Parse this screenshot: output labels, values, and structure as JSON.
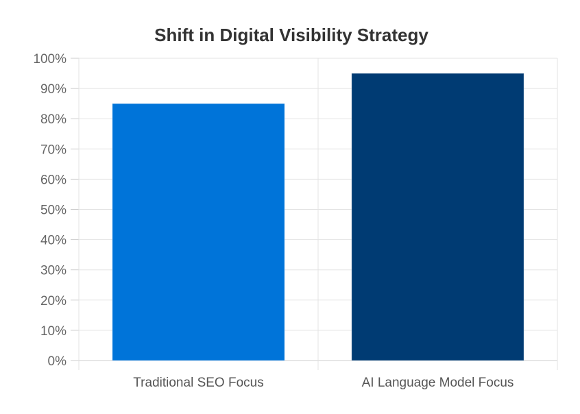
{
  "chart_data": {
    "type": "bar",
    "title": "Shift in Digital Visibility Strategy",
    "xlabel": "",
    "ylabel": "",
    "categories": [
      "Traditional SEO Focus",
      "AI Language Model Focus"
    ],
    "values": [
      85,
      95
    ],
    "bar_colors": [
      "#0074D9",
      "#003B73"
    ],
    "ylim": [
      0,
      100
    ],
    "yticks": [
      0,
      10,
      20,
      30,
      40,
      50,
      60,
      70,
      80,
      90,
      100
    ],
    "ytick_suffix": "%",
    "grid": true,
    "legend": "none"
  }
}
